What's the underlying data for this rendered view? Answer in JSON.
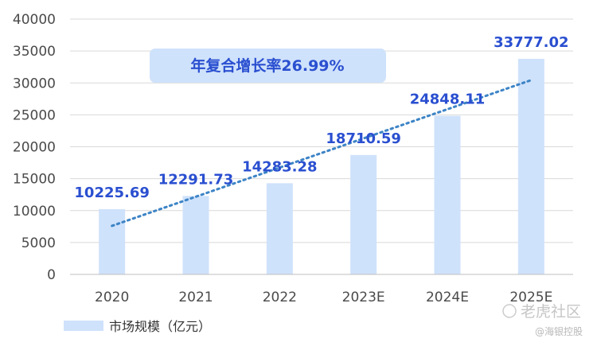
{
  "chart_data": {
    "type": "bar",
    "categories": [
      "2020",
      "2021",
      "2022",
      "2023E",
      "2024E",
      "2025E"
    ],
    "series": [
      {
        "name": "市场规模（亿元）",
        "values": [
          10225.69,
          12291.73,
          14283.28,
          18710.59,
          24848.11,
          33777.02
        ]
      }
    ],
    "data_labels": [
      "10225.69",
      "12291.73",
      "14283.28",
      "18710.59",
      "24848.11",
      "33777.02"
    ],
    "ylim": [
      0,
      40000
    ],
    "yticks": [
      0,
      5000,
      10000,
      15000,
      20000,
      25000,
      30000,
      35000,
      40000
    ],
    "grid": true,
    "legend_position": "bottom-left",
    "trendline": {
      "style": "dotted",
      "type": "linear"
    },
    "annotation": "年复合增长率26.99%",
    "bar_color": "#cfe2fb",
    "label_color": "#2a4fd0",
    "trend_color": "#3d84c6",
    "annotation_bg": "#cfe2fb"
  },
  "watermark": {
    "main": "老虎社区",
    "sub": "@海银控股"
  }
}
